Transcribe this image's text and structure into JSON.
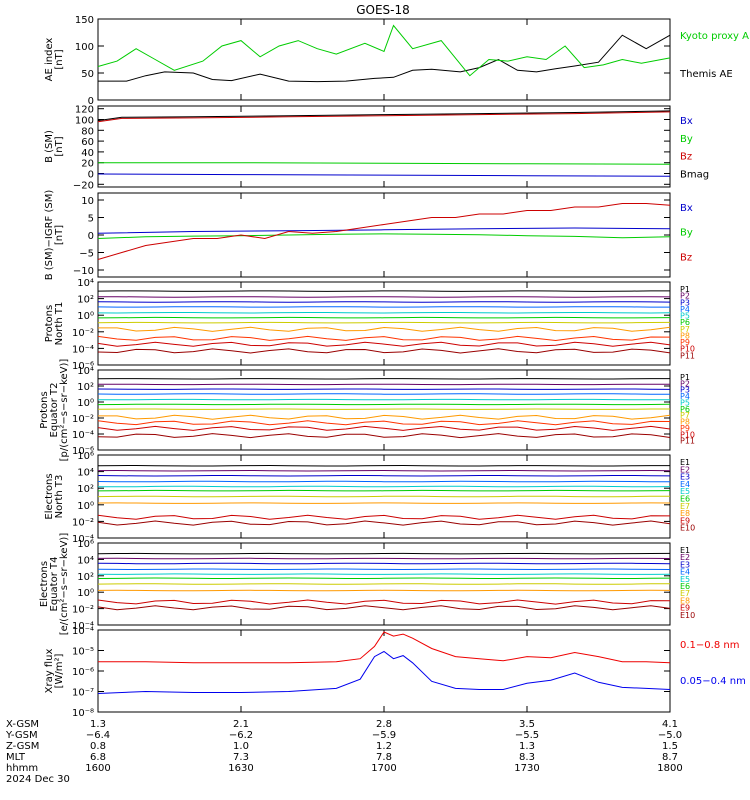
{
  "title": "GOES-18",
  "chart_data": [
    {
      "type": "line",
      "ylabel": [
        "AE index",
        "[nT]"
      ],
      "ylim": [
        0,
        150
      ],
      "yscale": "linear",
      "yticks": [
        0,
        50,
        100,
        150
      ],
      "ytick_labels": [
        "0",
        "50",
        "100",
        "150"
      ],
      "series": [
        {
          "name": "Themis AE",
          "color": "#000000",
          "x": [
            0,
            6,
            10,
            14,
            20,
            24,
            28,
            34,
            40,
            46,
            52,
            58,
            62,
            66,
            70,
            76,
            80,
            84,
            88,
            92,
            96,
            100,
            105,
            110,
            115,
            120
          ],
          "values": [
            35,
            35,
            45,
            52,
            50,
            38,
            36,
            48,
            35,
            34,
            35,
            40,
            42,
            55,
            57,
            52,
            60,
            75,
            55,
            52,
            58,
            63,
            70,
            120,
            95,
            120
          ]
        },
        {
          "name": "Kyoto proxy AE",
          "color": "#00cc00",
          "x": [
            0,
            4,
            8,
            12,
            16,
            22,
            26,
            30,
            34,
            38,
            42,
            46,
            50,
            56,
            60,
            62,
            66,
            72,
            78,
            82,
            86,
            90,
            94,
            98,
            102,
            106,
            110,
            114,
            120
          ],
          "values": [
            62,
            72,
            95,
            75,
            55,
            72,
            100,
            110,
            80,
            100,
            110,
            95,
            85,
            105,
            90,
            138,
            95,
            110,
            45,
            75,
            72,
            80,
            75,
            100,
            60,
            65,
            75,
            68,
            78
          ]
        }
      ],
      "legend": [
        "Kyoto proxy AE",
        "Themis AE"
      ]
    },
    {
      "type": "line",
      "ylabel": [
        "B (SM)",
        "[nT]"
      ],
      "ylim": [
        -25,
        125
      ],
      "yscale": "linear",
      "yticks": [
        -20,
        0,
        20,
        40,
        60,
        80,
        100,
        120
      ],
      "ytick_labels": [
        "−20",
        "0",
        "20",
        "40",
        "60",
        "80",
        "100",
        "120"
      ],
      "series": [
        {
          "name": "Bx",
          "color": "#0000cc",
          "x": [
            0,
            30,
            60,
            90,
            120
          ],
          "values": [
            -1,
            -2,
            -3,
            -4,
            -5
          ]
        },
        {
          "name": "By",
          "color": "#00cc00",
          "x": [
            0,
            30,
            60,
            90,
            120
          ],
          "values": [
            20,
            20,
            19,
            18,
            17
          ]
        },
        {
          "name": "Bz",
          "color": "#cc0000",
          "x": [
            0,
            5,
            20,
            40,
            60,
            80,
            100,
            120
          ],
          "values": [
            96,
            102,
            103,
            105,
            107,
            109,
            111,
            114
          ]
        },
        {
          "name": "Bmag",
          "color": "#000000",
          "x": [
            0,
            5,
            20,
            40,
            60,
            80,
            100,
            120
          ],
          "values": [
            98,
            104,
            105,
            107,
            109,
            111,
            113,
            116
          ]
        }
      ],
      "legend": [
        "Bx",
        "By",
        "Bz",
        "Bmag"
      ]
    },
    {
      "type": "line",
      "ylabel": [
        "B (SM)−IGRF (SM)",
        "[nT]"
      ],
      "ylim": [
        -12,
        12
      ],
      "yscale": "linear",
      "yticks": [
        -10,
        -5,
        0,
        5,
        10
      ],
      "ytick_labels": [
        "−10",
        "−5",
        "0",
        "5",
        "10"
      ],
      "series": [
        {
          "name": "Bx",
          "color": "#0000cc",
          "x": [
            0,
            20,
            40,
            60,
            80,
            100,
            120
          ],
          "values": [
            0.5,
            1,
            1.2,
            1.5,
            1.8,
            2,
            1.8
          ]
        },
        {
          "name": "By",
          "color": "#00cc00",
          "x": [
            0,
            10,
            20,
            30,
            40,
            50,
            60,
            70,
            80,
            90,
            100,
            110,
            120
          ],
          "values": [
            -1,
            -0.5,
            -0.3,
            -0.2,
            0,
            0.2,
            0.3,
            0.2,
            0.1,
            -0.2,
            -0.4,
            -0.8,
            -0.5
          ]
        },
        {
          "name": "Bz",
          "color": "#cc0000",
          "x": [
            0,
            5,
            10,
            15,
            20,
            25,
            30,
            35,
            40,
            45,
            50,
            55,
            60,
            65,
            70,
            75,
            80,
            85,
            90,
            95,
            100,
            105,
            110,
            115,
            120
          ],
          "values": [
            -7,
            -5,
            -3,
            -2,
            -1,
            -1,
            0,
            -1,
            1,
            0.5,
            1,
            2,
            3,
            4,
            5,
            5,
            6,
            6,
            7,
            7,
            8,
            8,
            9,
            9,
            8.5
          ]
        }
      ],
      "legend": [
        "Bx",
        "By",
        "Bz"
      ]
    },
    {
      "type": "line",
      "ylabel": [
        "Protons",
        "North T1"
      ],
      "ylim": [
        -6,
        4
      ],
      "yscale": "log",
      "yticks": [
        4,
        2,
        0,
        -2,
        -4,
        -6
      ],
      "ytick_labels": [
        "10⁴",
        "10²",
        "10⁰",
        "10⁻²",
        "10⁻⁴",
        "10⁻⁶"
      ],
      "series": [
        {
          "name": "P1",
          "color": "#000000",
          "values": 2.9
        },
        {
          "name": "P2",
          "color": "#660066",
          "values": 2.2
        },
        {
          "name": "P3",
          "color": "#0000cc",
          "values": 1.6
        },
        {
          "name": "P4",
          "color": "#0066ff",
          "values": 1.0
        },
        {
          "name": "P5",
          "color": "#00cccc",
          "values": 0.3
        },
        {
          "name": "P6",
          "color": "#00cc00",
          "values": -0.3
        },
        {
          "name": "P7",
          "color": "#cccc00",
          "values": -0.9
        },
        {
          "name": "P8",
          "color": "#ff9900",
          "values": -1.7
        },
        {
          "name": "P9",
          "color": "#ff3300",
          "values": -2.8
        },
        {
          "name": "P10",
          "color": "#cc0000",
          "values": -3.5
        },
        {
          "name": "P11",
          "color": "#990000",
          "values": -4.3
        }
      ],
      "legend": [
        "P1",
        "P2",
        "P3",
        "P4",
        "P5",
        "P6",
        "P7",
        "P8",
        "P9",
        "P10",
        "P11"
      ]
    },
    {
      "type": "line",
      "ylabel": [
        "Protons",
        "Equator T2",
        "[p/(cm²−s−sr−keV)]"
      ],
      "ylim": [
        -6,
        4
      ],
      "yscale": "log",
      "yticks": [
        4,
        2,
        0,
        -2,
        -4,
        -6
      ],
      "ytick_labels": [
        "10⁴",
        "10²",
        "10⁰",
        "10⁻²",
        "10⁻⁴",
        "10⁻⁶"
      ],
      "series": [
        {
          "name": "P1",
          "color": "#000000",
          "values": 2.9
        },
        {
          "name": "P2",
          "color": "#660066",
          "values": 2.2
        },
        {
          "name": "P3",
          "color": "#0000cc",
          "values": 1.6
        },
        {
          "name": "P4",
          "color": "#0066ff",
          "values": 1.0
        },
        {
          "name": "P5",
          "color": "#00cccc",
          "values": 0.3
        },
        {
          "name": "P6",
          "color": "#00cc00",
          "values": -0.3
        },
        {
          "name": "P7",
          "color": "#cccc00",
          "values": -0.9
        },
        {
          "name": "P8",
          "color": "#ff9900",
          "values": -1.9
        },
        {
          "name": "P9",
          "color": "#ff3300",
          "values": -2.6
        },
        {
          "name": "P10",
          "color": "#cc0000",
          "values": -3.3
        },
        {
          "name": "P11",
          "color": "#990000",
          "values": -4.2
        }
      ],
      "legend": [
        "P1",
        "P2",
        "P3",
        "P4",
        "P5",
        "P6",
        "P7",
        "P8",
        "P9",
        "P10",
        "P11"
      ]
    },
    {
      "type": "line",
      "ylabel": [
        "Electrons",
        "North T3"
      ],
      "ylim": [
        -4,
        6
      ],
      "yscale": "log",
      "yticks": [
        6,
        4,
        2,
        0,
        -2,
        -4
      ],
      "ytick_labels": [
        "10⁶",
        "10⁴",
        "10²",
        "10⁰",
        "10⁻²",
        "10⁻⁴"
      ],
      "series": [
        {
          "name": "E1",
          "color": "#000000",
          "values": 4.7
        },
        {
          "name": "E2",
          "color": "#660066",
          "values": 4.1
        },
        {
          "name": "E3",
          "color": "#0000cc",
          "values": 3.5
        },
        {
          "name": "E4",
          "color": "#0066ff",
          "values": 2.8
        },
        {
          "name": "E5",
          "color": "#00cccc",
          "values": 2.2
        },
        {
          "name": "E6",
          "color": "#00cc00",
          "values": 1.7
        },
        {
          "name": "E7",
          "color": "#cccc00",
          "values": 1.0
        },
        {
          "name": "E8",
          "color": "#ff9900",
          "values": 0.2
        },
        {
          "name": "E9",
          "color": "#cc0000",
          "values": -1.5
        },
        {
          "name": "E10",
          "color": "#990000",
          "values": -2.2
        }
      ],
      "legend": [
        "E1",
        "E2",
        "E3",
        "E4",
        "E5",
        "E6",
        "E7",
        "E8",
        "E9",
        "E10"
      ]
    },
    {
      "type": "line",
      "ylabel": [
        "Electrons",
        "Equator T4",
        "[e/(cm²−s−sr−keV)]"
      ],
      "ylim": [
        -4,
        6
      ],
      "yscale": "log",
      "yticks": [
        6,
        4,
        2,
        0,
        -2,
        -4
      ],
      "ytick_labels": [
        "10⁶",
        "10⁴",
        "10²",
        "10⁰",
        "10⁻²",
        "10⁻⁴"
      ],
      "series": [
        {
          "name": "E1",
          "color": "#000000",
          "values": 4.7
        },
        {
          "name": "E2",
          "color": "#660066",
          "values": 4.1
        },
        {
          "name": "E3",
          "color": "#0000cc",
          "values": 3.5
        },
        {
          "name": "E4",
          "color": "#0066ff",
          "values": 2.8
        },
        {
          "name": "E5",
          "color": "#00cccc",
          "values": 2.2
        },
        {
          "name": "E6",
          "color": "#00cc00",
          "values": 1.7
        },
        {
          "name": "E7",
          "color": "#cccc00",
          "values": 1.0
        },
        {
          "name": "E8",
          "color": "#ff9900",
          "values": 0.2
        },
        {
          "name": "E9",
          "color": "#cc0000",
          "values": -1.2
        },
        {
          "name": "E10",
          "color": "#990000",
          "values": -1.9
        }
      ],
      "legend": [
        "E1",
        "E2",
        "E3",
        "E4",
        "E5",
        "E6",
        "E7",
        "E8",
        "E9",
        "E10"
      ]
    },
    {
      "type": "line",
      "ylabel": [
        "Xray flux",
        "[W/m²]"
      ],
      "ylim": [
        -8,
        -4
      ],
      "yscale": "log",
      "yticks": [
        -4,
        -5,
        -6,
        -7,
        -8
      ],
      "ytick_labels": [
        "10⁻⁴",
        "10⁻⁵",
        "10⁻⁶",
        "10⁻⁷",
        "10⁻⁸"
      ],
      "series": [
        {
          "name": "0.1−0.8 nm",
          "color": "#ee0000",
          "x": [
            0,
            10,
            20,
            30,
            40,
            50,
            55,
            58,
            60,
            62,
            64,
            66,
            70,
            75,
            80,
            85,
            90,
            95,
            100,
            105,
            110,
            115,
            120
          ],
          "values": [
            -5.55,
            -5.55,
            -5.6,
            -5.6,
            -5.6,
            -5.55,
            -5.4,
            -4.8,
            -4.1,
            -4.3,
            -4.2,
            -4.4,
            -4.9,
            -5.3,
            -5.4,
            -5.5,
            -5.3,
            -5.35,
            -5.1,
            -5.3,
            -5.55,
            -5.55,
            -5.6
          ]
        },
        {
          "name": "0.05−0.4 nm",
          "color": "#0000ee",
          "x": [
            0,
            10,
            20,
            30,
            40,
            50,
            55,
            58,
            60,
            62,
            64,
            66,
            70,
            75,
            80,
            85,
            90,
            95,
            100,
            105,
            110,
            115,
            120
          ],
          "values": [
            -7.1,
            -7.0,
            -7.05,
            -7.05,
            -7.0,
            -6.85,
            -6.4,
            -5.3,
            -5.05,
            -5.4,
            -5.25,
            -5.6,
            -6.5,
            -6.85,
            -6.9,
            -6.9,
            -6.6,
            -6.45,
            -6.1,
            -6.55,
            -6.8,
            -6.85,
            -6.9
          ]
        }
      ],
      "legend": [
        "0.1−0.8 nm",
        "0.05−0.4 nm"
      ]
    }
  ],
  "time_axis": {
    "xlim": [
      0,
      120
    ],
    "rows": [
      {
        "label": "X-GSM",
        "values": [
          "1.3",
          "2.1",
          "2.8",
          "3.5",
          "4.1"
        ]
      },
      {
        "label": "Y-GSM",
        "values": [
          "−6.4",
          "−6.2",
          "−5.9",
          "−5.5",
          "−5.0"
        ]
      },
      {
        "label": "Z-GSM",
        "values": [
          "0.8",
          "1.0",
          "1.2",
          "1.3",
          "1.5"
        ]
      },
      {
        "label": "MLT",
        "values": [
          "6.8",
          "7.3",
          "7.8",
          "8.3",
          "8.7"
        ]
      },
      {
        "label": "hhmm",
        "values": [
          "1600",
          "1630",
          "1700",
          "1730",
          "1800"
        ]
      }
    ],
    "date": "2024 Dec 30"
  }
}
